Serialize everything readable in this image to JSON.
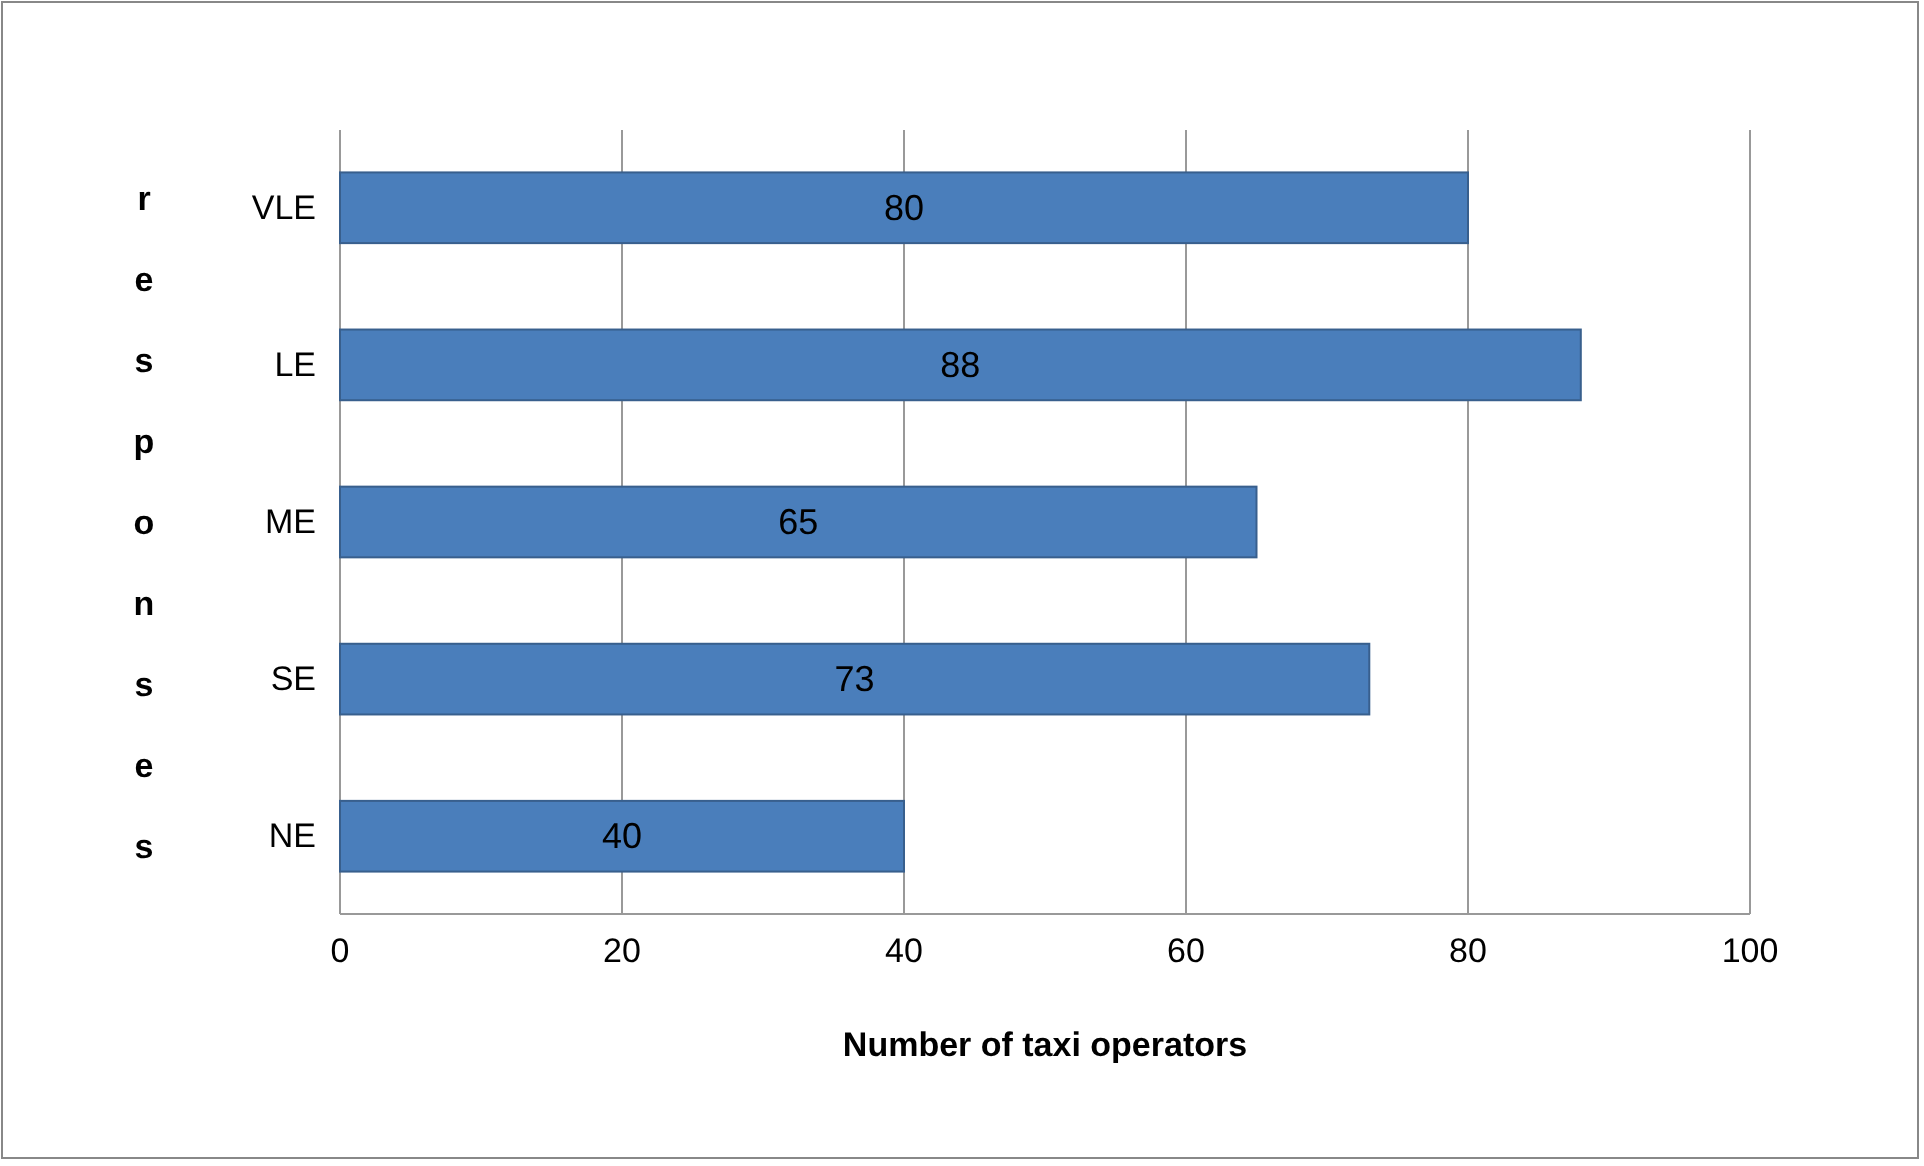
{
  "chart_data": {
    "type": "bar",
    "orientation": "horizontal",
    "categories": [
      "VLE",
      "LE",
      "ME",
      "SE",
      "NE"
    ],
    "values": [
      80,
      88,
      65,
      73,
      40
    ],
    "color": "#4a7ebb",
    "xlim": [
      0,
      100
    ],
    "xticks": [
      0,
      20,
      40,
      60,
      80,
      100
    ],
    "xlabel": "Number of taxi operators",
    "ylabel": "responses",
    "grid": "x",
    "data_labels": true
  }
}
